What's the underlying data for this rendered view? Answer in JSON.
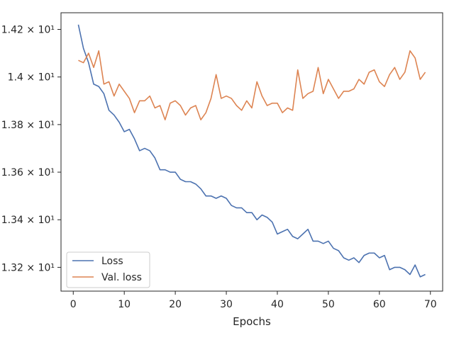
{
  "chart_data": {
    "type": "line",
    "title": "",
    "xlabel": "Epochs",
    "ylabel": "",
    "xlim": [
      -2.4,
      72.4
    ],
    "ylim": [
      13.1,
      14.27
    ],
    "x_ticks": [
      0,
      10,
      20,
      30,
      40,
      50,
      60,
      70
    ],
    "x_tick_labels": [
      "0",
      "10",
      "20",
      "30",
      "40",
      "50",
      "60",
      "70"
    ],
    "y_ticks": [
      13.2,
      13.4,
      13.6,
      13.8,
      14.0,
      14.2
    ],
    "y_tick_labels": [
      "1.32 × 10¹",
      "1.34 × 10¹",
      "1.36 × 10¹",
      "1.38 × 10¹",
      "1.4 × 10¹",
      "1.42 × 10¹"
    ],
    "legend_position": "lower-left",
    "x": [
      1,
      2,
      3,
      4,
      5,
      6,
      7,
      8,
      9,
      10,
      11,
      12,
      13,
      14,
      15,
      16,
      17,
      18,
      19,
      20,
      21,
      22,
      23,
      24,
      25,
      26,
      27,
      28,
      29,
      30,
      31,
      32,
      33,
      34,
      35,
      36,
      37,
      38,
      39,
      40,
      41,
      42,
      43,
      44,
      45,
      46,
      47,
      48,
      49,
      50,
      51,
      52,
      53,
      54,
      55,
      56,
      57,
      58,
      59,
      60,
      61,
      62,
      63,
      64,
      65,
      66,
      67,
      68,
      69
    ],
    "series": [
      {
        "name": "Loss",
        "color": "#4c72b0",
        "values": [
          14.22,
          14.12,
          14.06,
          13.97,
          13.96,
          13.93,
          13.86,
          13.84,
          13.81,
          13.77,
          13.78,
          13.74,
          13.69,
          13.7,
          13.69,
          13.66,
          13.61,
          13.61,
          13.6,
          13.6,
          13.57,
          13.56,
          13.56,
          13.55,
          13.53,
          13.5,
          13.5,
          13.49,
          13.5,
          13.49,
          13.46,
          13.45,
          13.45,
          13.43,
          13.43,
          13.4,
          13.42,
          13.41,
          13.39,
          13.34,
          13.35,
          13.36,
          13.33,
          13.32,
          13.34,
          13.36,
          13.31,
          13.31,
          13.3,
          13.31,
          13.28,
          13.27,
          13.24,
          13.23,
          13.24,
          13.22,
          13.25,
          13.26,
          13.26,
          13.24,
          13.25,
          13.19,
          13.2,
          13.2,
          13.19,
          13.17,
          13.21,
          13.16,
          13.17
        ]
      },
      {
        "name": "Val. loss",
        "color": "#dd8452",
        "values": [
          14.07,
          14.06,
          14.1,
          14.04,
          14.11,
          13.97,
          13.98,
          13.92,
          13.97,
          13.94,
          13.91,
          13.85,
          13.9,
          13.9,
          13.92,
          13.87,
          13.88,
          13.82,
          13.89,
          13.9,
          13.88,
          13.84,
          13.87,
          13.88,
          13.82,
          13.85,
          13.91,
          14.01,
          13.91,
          13.92,
          13.91,
          13.88,
          13.86,
          13.9,
          13.87,
          13.98,
          13.92,
          13.88,
          13.89,
          13.89,
          13.85,
          13.87,
          13.86,
          14.03,
          13.91,
          13.93,
          13.94,
          14.04,
          13.93,
          13.99,
          13.95,
          13.91,
          13.94,
          13.94,
          13.95,
          13.99,
          13.97,
          14.02,
          14.03,
          13.98,
          13.96,
          14.01,
          14.04,
          13.99,
          14.02,
          14.11,
          14.08,
          13.99,
          14.02
        ]
      }
    ]
  }
}
